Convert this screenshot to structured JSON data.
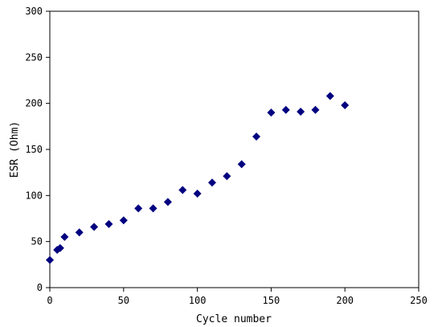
{
  "chart_data": {
    "type": "scatter",
    "title": "",
    "xlabel": "Cycle number",
    "ylabel": "ESR (Ohm)",
    "xlim": [
      0,
      250
    ],
    "ylim": [
      0,
      300
    ],
    "x_ticks": [
      0,
      50,
      100,
      150,
      200,
      250
    ],
    "y_ticks": [
      0,
      50,
      100,
      150,
      200,
      250,
      300
    ],
    "grid": false,
    "legend": "none",
    "marker": "diamond",
    "marker_color": "#000080",
    "series": [
      {
        "x": [
          0,
          5,
          7,
          10,
          20,
          30,
          40,
          50,
          60,
          70,
          80,
          90,
          100,
          110,
          120,
          130,
          140,
          150,
          160,
          170,
          180,
          190,
          200
        ],
        "y": [
          30,
          41,
          43,
          55,
          60,
          66,
          69,
          73,
          86,
          86,
          93,
          106,
          102,
          114,
          121,
          134,
          164,
          190,
          193,
          191,
          193,
          208,
          198
        ]
      }
    ]
  }
}
